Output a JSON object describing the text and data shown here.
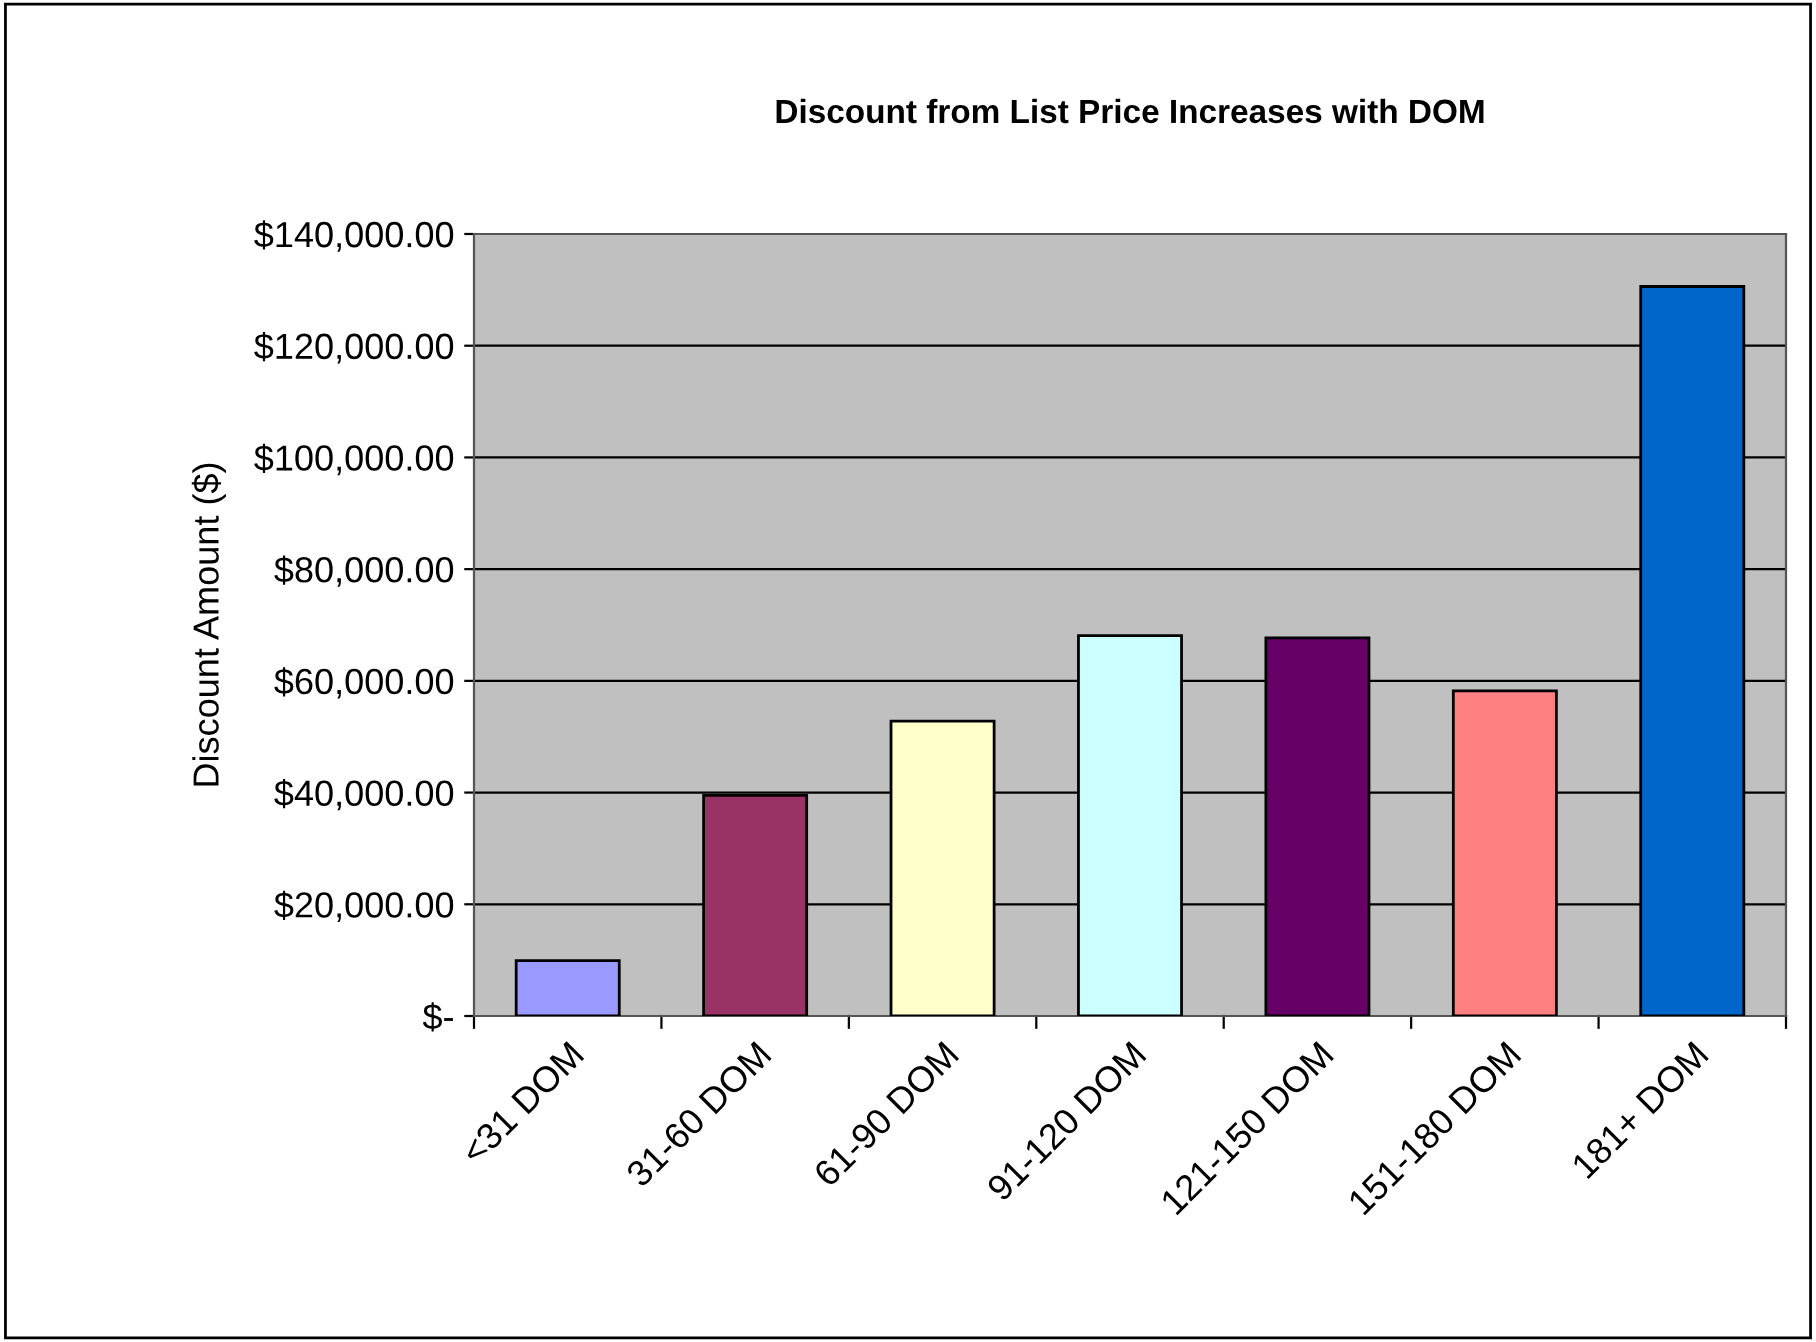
{
  "chart_data": {
    "type": "bar",
    "title": "Discount from List Price Increases with DOM",
    "ylabel": "Discount Amount ($)",
    "categories": [
      "<31 DOM",
      "31-60 DOM",
      "61-90 DOM",
      "91-120 DOM",
      "121-150 DOM",
      "151-180 DOM",
      "181+ DOM"
    ],
    "values": [
      9900,
      39500,
      52800,
      68100,
      67700,
      58200,
      130600
    ],
    "colors": [
      "#9999ff",
      "#993366",
      "#ffffcc",
      "#ccffff",
      "#660066",
      "#ff8080",
      "#0066cc"
    ],
    "ylim": [
      0,
      140000
    ],
    "yticks": [
      {
        "value": 0,
        "label": "$-"
      },
      {
        "value": 20000,
        "label": "$20,000.00"
      },
      {
        "value": 40000,
        "label": "$40,000.00"
      },
      {
        "value": 60000,
        "label": "$60,000.00"
      },
      {
        "value": 80000,
        "label": "$80,000.00"
      },
      {
        "value": 100000,
        "label": "$100,000.00"
      },
      {
        "value": 120000,
        "label": "$120,000.00"
      },
      {
        "value": 140000,
        "label": "$140,000.00"
      }
    ],
    "grid": "y",
    "legend": false
  }
}
